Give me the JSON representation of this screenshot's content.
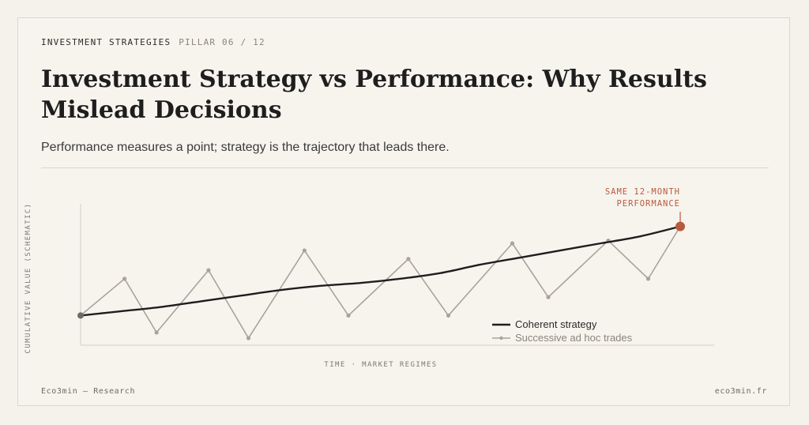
{
  "header": {
    "kicker": "INVESTMENT STRATEGIES",
    "pillar": "PILLAR 06 / 12",
    "title": "Investment Strategy vs Performance: Why Results Mislead Decisions",
    "subtitle": "Performance measures a point; strategy is the trajectory that leads there."
  },
  "footer": {
    "left": "Eco3min — Research",
    "right": "eco3min.fr"
  },
  "colors": {
    "background": "#f7f4ee",
    "strategy": "#1e1e1e",
    "adhoc": "#a8a39b",
    "accent": "#b85a3c"
  },
  "chart_data": {
    "type": "line",
    "xlabel": "TIME · MARKET REGIMES",
    "ylabel": "CUMULATIVE VALUE (SCHEMATIC)",
    "xlim": [
      0,
      15
    ],
    "ylim": [
      0,
      100
    ],
    "grid": false,
    "legend_position": "bottom-right",
    "annotation": {
      "line1": "SAME 12-MONTH",
      "line2": "PERFORMANCE",
      "x": 15,
      "y": 84
    },
    "series": [
      {
        "name": "Coherent strategy",
        "style": "smooth",
        "x": [
          0,
          1,
          2,
          3,
          4,
          5,
          6,
          7,
          8,
          9,
          10,
          11,
          12,
          13,
          14,
          15
        ],
        "y": [
          21,
          24,
          27,
          31,
          35,
          39,
          42,
          44,
          47,
          51,
          57,
          62,
          67,
          72,
          77,
          84
        ]
      },
      {
        "name": "Successive ad hoc trades",
        "style": "markers",
        "x": [
          0,
          1.1,
          1.9,
          3.2,
          4.2,
          5.6,
          6.7,
          8.2,
          9.2,
          10.8,
          11.7,
          13.2,
          14.2,
          15
        ],
        "y": [
          21,
          47,
          9,
          53,
          5,
          67,
          21,
          61,
          21,
          72,
          34,
          74,
          47,
          84
        ]
      }
    ]
  }
}
